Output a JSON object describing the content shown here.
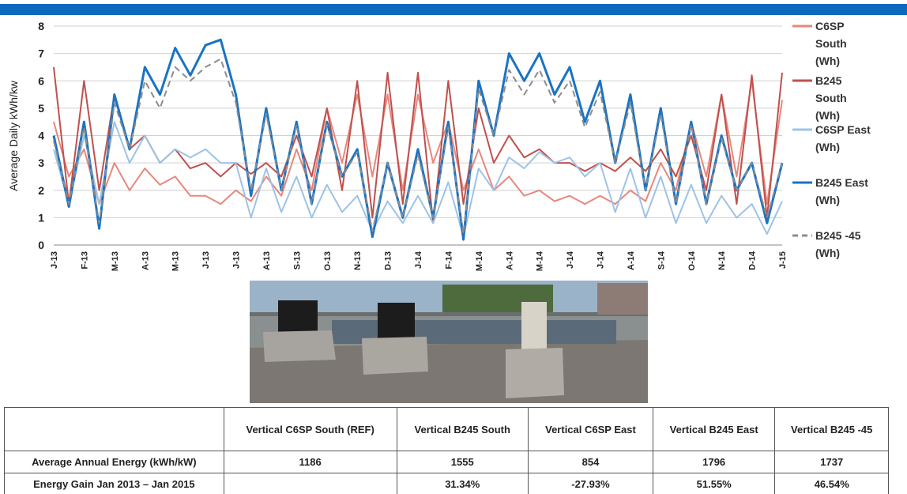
{
  "chart_data": {
    "type": "line",
    "ylabel": "Average Daily kWh/kw",
    "categories": [
      "J-13",
      null,
      "F-13",
      null,
      "M-13",
      null,
      "A-13",
      null,
      "M-13",
      null,
      "J-13",
      null,
      "J-13",
      null,
      "A-13",
      null,
      "S-13",
      null,
      "O-13",
      null,
      "N-13",
      null,
      "D-13",
      null,
      "J-14",
      null,
      "F-14",
      null,
      "M-14",
      null,
      "A-14",
      null,
      "M-14",
      null,
      "J-14",
      null,
      "J-14",
      null,
      "A-14",
      null,
      "S-14",
      null,
      "O-14",
      null,
      "N-14",
      null,
      "D-14",
      null,
      "J-15"
    ],
    "ylim": [
      0,
      8
    ],
    "yticks": [
      0,
      1,
      2,
      3,
      4,
      5,
      6,
      7,
      8
    ],
    "grid": true,
    "series": [
      {
        "name": "C6SP South (Wh)",
        "color": "#e8877c",
        "values": [
          4.5,
          2.5,
          3.5,
          1.5,
          3,
          2,
          2.8,
          2.2,
          2.5,
          1.8,
          1.8,
          1.5,
          2,
          1.6,
          2.5,
          1.8,
          3.5,
          2,
          5,
          3,
          5.5,
          2.5,
          5.5,
          2,
          5.5,
          3,
          4.5,
          2,
          3.5,
          2,
          2.5,
          1.8,
          2,
          1.6,
          1.8,
          1.5,
          1.8,
          1.5,
          2,
          1.6,
          3,
          2,
          4.5,
          2.5,
          5.5,
          2.5,
          6,
          1.5,
          5.3
        ]
      },
      {
        "name": "B245 South (Wh)",
        "color": "#c0504d",
        "values": [
          6.5,
          1.5,
          6,
          2,
          5.5,
          3.5,
          4,
          3,
          3.5,
          2.8,
          3,
          2.5,
          3,
          2.6,
          3,
          2.5,
          4,
          2.5,
          5,
          2,
          6,
          1,
          6.3,
          1.5,
          6.3,
          0.8,
          6,
          1.5,
          5,
          3,
          4,
          3.2,
          3.5,
          3,
          3,
          2.7,
          3,
          2.7,
          3.2,
          2.7,
          3.5,
          2.5,
          4,
          2,
          5.5,
          1.5,
          6.2,
          1,
          6.3
        ]
      },
      {
        "name": "C6SP East (Wh)",
        "color": "#9dc3e6",
        "values": [
          3.5,
          1.5,
          4,
          1.5,
          4.5,
          3,
          4,
          3,
          3.5,
          3.2,
          3.5,
          3,
          3,
          1,
          2.8,
          1.2,
          2.5,
          1,
          2.2,
          1.2,
          1.8,
          0.5,
          1.6,
          0.8,
          1.8,
          0.8,
          2.3,
          0.3,
          2.8,
          2,
          3.2,
          2.8,
          3.4,
          3,
          3.2,
          2.5,
          3,
          1.2,
          2.8,
          1,
          2.5,
          0.8,
          2.2,
          0.8,
          1.8,
          1,
          1.5,
          0.4,
          1.6
        ]
      },
      {
        "name": "B245 East (Wh)",
        "color": "#1a73c4",
        "values": [
          4,
          1.4,
          4.5,
          0.6,
          5.5,
          3.5,
          6.5,
          5.5,
          7.2,
          6.2,
          7.3,
          7.5,
          5.5,
          1.8,
          5,
          2,
          4.5,
          1.5,
          4.5,
          2.5,
          3.5,
          0.3,
          3,
          1,
          3.5,
          1,
          4.5,
          0.2,
          6,
          4,
          7,
          6,
          7,
          5.5,
          6.5,
          4.5,
          6,
          3,
          5.5,
          2,
          5,
          1.5,
          4.5,
          1.5,
          4,
          2,
          3,
          0.8,
          3
        ]
      },
      {
        "name": "B245 -45 (Wh)",
        "color": "#8c8c8c",
        "dashed": true,
        "values": [
          3.8,
          1.5,
          4.3,
          0.8,
          5.2,
          3.5,
          6,
          5,
          6.5,
          6,
          6.5,
          6.8,
          5.2,
          2,
          4.8,
          2,
          4.4,
          1.5,
          4.4,
          2.5,
          3.4,
          0.5,
          3,
          1,
          3.3,
          1,
          4.3,
          0.4,
          5.7,
          4,
          6.4,
          5.5,
          6.4,
          5.2,
          6,
          4.3,
          5.6,
          3,
          5.2,
          2,
          4.8,
          1.5,
          4.4,
          1.5,
          3.9,
          2,
          3,
          1,
          3
        ]
      }
    ]
  },
  "table": {
    "columns": [
      "Vertical C6SP South (REF)",
      "Vertical B245 South",
      "Vertical C6SP East",
      "Vertical B245 East",
      "Vertical B245 -45"
    ],
    "rows": [
      {
        "label": "Average Annual Energy (kWh/kW)",
        "cells": [
          1186,
          1555,
          854,
          1796,
          1737
        ]
      },
      {
        "label": "Energy Gain Jan 2013 – Jan 2015",
        "cells": [
          null,
          "31.34%",
          "-27.93%",
          "51.55%",
          "46.54%"
        ]
      }
    ]
  }
}
